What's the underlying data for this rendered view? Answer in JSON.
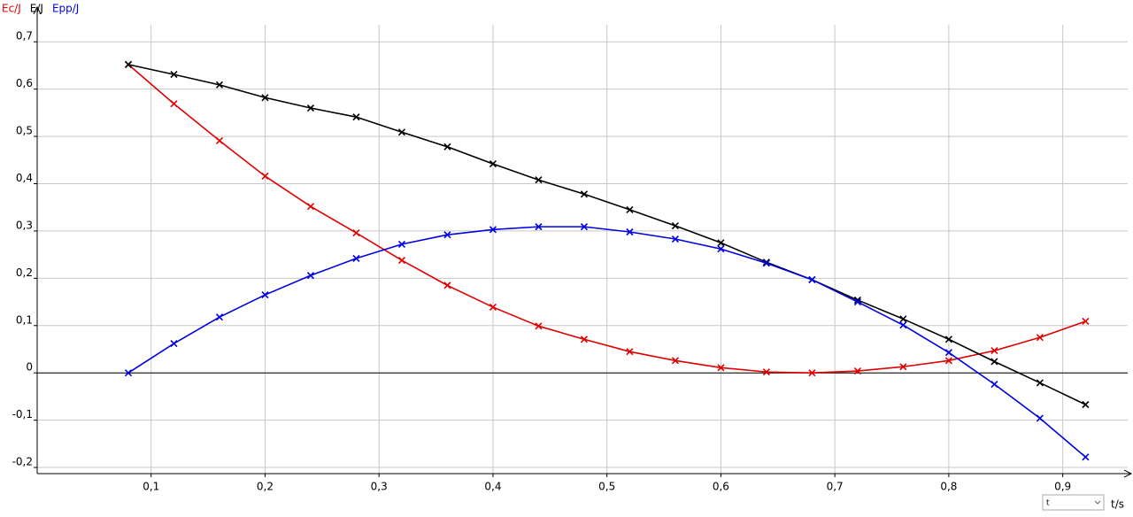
{
  "chart_data": {
    "type": "line",
    "x_label": "t/s",
    "x": [
      0.08,
      0.12,
      0.16,
      0.2,
      0.24,
      0.28,
      0.32,
      0.36,
      0.4,
      0.44,
      0.48,
      0.52,
      0.56,
      0.6,
      0.64,
      0.68,
      0.72,
      0.76,
      0.8,
      0.84,
      0.88,
      0.92
    ],
    "series": [
      {
        "name": "Ec/J",
        "color": "#e00000",
        "values": [
          0.652,
          0.569,
          0.491,
          0.416,
          0.352,
          0.296,
          0.238,
          0.185,
          0.139,
          0.099,
          0.071,
          0.045,
          0.026,
          0.011,
          0.002,
          0.0,
          0.004,
          0.013,
          0.026,
          0.047,
          0.075,
          0.109
        ]
      },
      {
        "name": "E/J",
        "color": "#000000",
        "values": [
          0.652,
          0.631,
          0.609,
          0.582,
          0.56,
          0.541,
          0.509,
          0.478,
          0.442,
          0.408,
          0.378,
          0.345,
          0.311,
          0.275,
          0.234,
          0.197,
          0.154,
          0.114,
          0.071,
          0.024,
          -0.021,
          -0.067
        ]
      },
      {
        "name": "Epp/J",
        "color": "#0000e0",
        "values": [
          0.0,
          0.062,
          0.118,
          0.165,
          0.206,
          0.242,
          0.272,
          0.292,
          0.303,
          0.309,
          0.309,
          0.298,
          0.283,
          0.262,
          0.232,
          0.197,
          0.15,
          0.101,
          0.043,
          -0.024,
          -0.096,
          -0.178
        ]
      }
    ],
    "xlim": [
      0,
      0.957
    ],
    "ylim": [
      -0.213,
      0.736
    ],
    "xticks": [
      {
        "value": 0.1,
        "label": "0,1"
      },
      {
        "value": 0.2,
        "label": "0,2"
      },
      {
        "value": 0.3,
        "label": "0,3"
      },
      {
        "value": 0.4,
        "label": "0,4"
      },
      {
        "value": 0.5,
        "label": "0,5"
      },
      {
        "value": 0.6,
        "label": "0,6"
      },
      {
        "value": 0.7,
        "label": "0,7"
      },
      {
        "value": 0.8,
        "label": "0,8"
      },
      {
        "value": 0.9,
        "label": "0,9"
      }
    ],
    "yticks": [
      {
        "value": -0.2,
        "label": "-0,2"
      },
      {
        "value": -0.1,
        "label": "-0,1"
      },
      0,
      {
        "value": 0.1,
        "label": "0,1"
      },
      {
        "value": 0.2,
        "label": "0,2"
      },
      {
        "value": 0.3,
        "label": "0,3"
      },
      {
        "value": 0.4,
        "label": "0,4"
      },
      {
        "value": 0.5,
        "label": "0,5"
      },
      {
        "value": 0.6,
        "label": "0,6"
      },
      {
        "value": 0.7,
        "label": "0,7"
      }
    ],
    "grid": true
  },
  "controls": {
    "axis_select": "t"
  }
}
